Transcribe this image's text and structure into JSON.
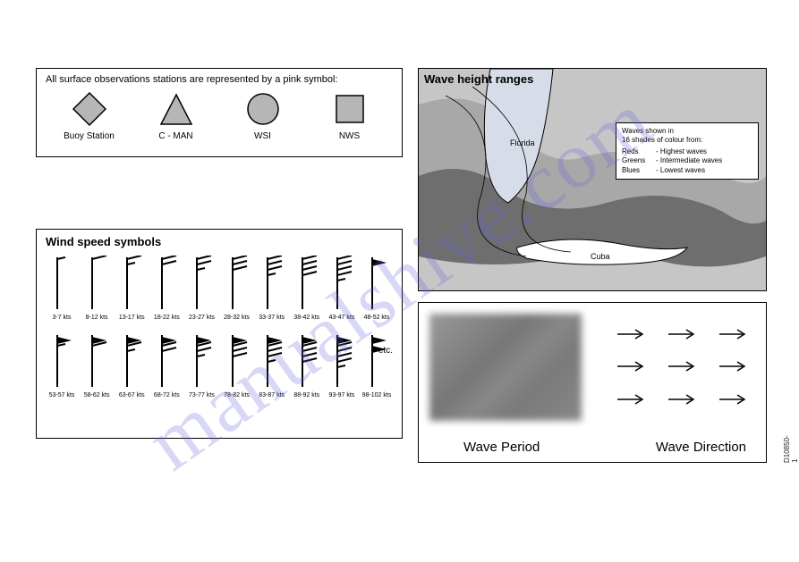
{
  "panelA": {
    "heading": "All surface observations stations are represented by a pink symbol:",
    "symbols": [
      {
        "shape": "diamond",
        "label": "Buoy Station",
        "fill": "#b6b6b6",
        "stroke": "#000"
      },
      {
        "shape": "triangle",
        "label": "C - MAN",
        "fill": "#b6b6b6",
        "stroke": "#000"
      },
      {
        "shape": "circle",
        "label": "WSI",
        "fill": "#b6b6b6",
        "stroke": "#000"
      },
      {
        "shape": "square",
        "label": "NWS",
        "fill": "#b6b6b6",
        "stroke": "#000"
      }
    ]
  },
  "panelB": {
    "title": "Wind speed symbols",
    "row1": [
      {
        "label": "3-7 kts",
        "half": 1,
        "full": 0,
        "flag": 0
      },
      {
        "label": "8-12 kts",
        "half": 0,
        "full": 1,
        "flag": 0
      },
      {
        "label": "13-17 kts",
        "half": 1,
        "full": 1,
        "flag": 0
      },
      {
        "label": "18-22 kts",
        "half": 0,
        "full": 2,
        "flag": 0
      },
      {
        "label": "23-27 kts",
        "half": 1,
        "full": 2,
        "flag": 0
      },
      {
        "label": "28-32 kts",
        "half": 0,
        "full": 3,
        "flag": 0
      },
      {
        "label": "33-37 kts",
        "half": 1,
        "full": 3,
        "flag": 0
      },
      {
        "label": "38-42 kts",
        "half": 0,
        "full": 4,
        "flag": 0
      },
      {
        "label": "43-47 kts",
        "half": 1,
        "full": 4,
        "flag": 0
      },
      {
        "label": "48-52 kts",
        "half": 0,
        "full": 0,
        "flag": 1
      }
    ],
    "row2": [
      {
        "label": "53-57 kts",
        "half": 1,
        "full": 0,
        "flag": 1
      },
      {
        "label": "58-62 kts",
        "half": 0,
        "full": 1,
        "flag": 1
      },
      {
        "label": "63-67 kts",
        "half": 1,
        "full": 1,
        "flag": 1
      },
      {
        "label": "68-72 kts",
        "half": 0,
        "full": 2,
        "flag": 1
      },
      {
        "label": "73-77 kts",
        "half": 1,
        "full": 2,
        "flag": 1
      },
      {
        "label": "78-82 kts",
        "half": 0,
        "full": 3,
        "flag": 1
      },
      {
        "label": "83-87 kts",
        "half": 1,
        "full": 3,
        "flag": 1
      },
      {
        "label": "88-92 kts",
        "half": 0,
        "full": 4,
        "flag": 1
      },
      {
        "label": "93-97 kts",
        "half": 1,
        "full": 4,
        "flag": 1
      },
      {
        "label": "98-102 kts",
        "half": 0,
        "full": 0,
        "flag": 2
      }
    ],
    "etc": "etc."
  },
  "panelC": {
    "title": "Wave height ranges",
    "map": {
      "bg": "#c6c6c6",
      "zone1": "#a8a8a8",
      "zone2": "#6e6e6e",
      "land": "#d6dce8",
      "land2": "#ffffff",
      "outline": "#000"
    },
    "labels": {
      "florida": "Florida",
      "cuba": "Cuba"
    },
    "legend": {
      "line1": "Waves shown in",
      "line2": "16 shades of colour from:",
      "rows": [
        {
          "k": "Reds",
          "v": "- Highest waves"
        },
        {
          "k": "Greens",
          "v": "- Intermediate waves"
        },
        {
          "k": "Blues",
          "v": "- Lowest waves"
        }
      ]
    }
  },
  "panelD": {
    "period_label": "Wave Period",
    "direction_label": "Wave Direction",
    "arrow_color": "#000"
  },
  "watermark": "manualshive.com",
  "doc_id": "D10850-1"
}
